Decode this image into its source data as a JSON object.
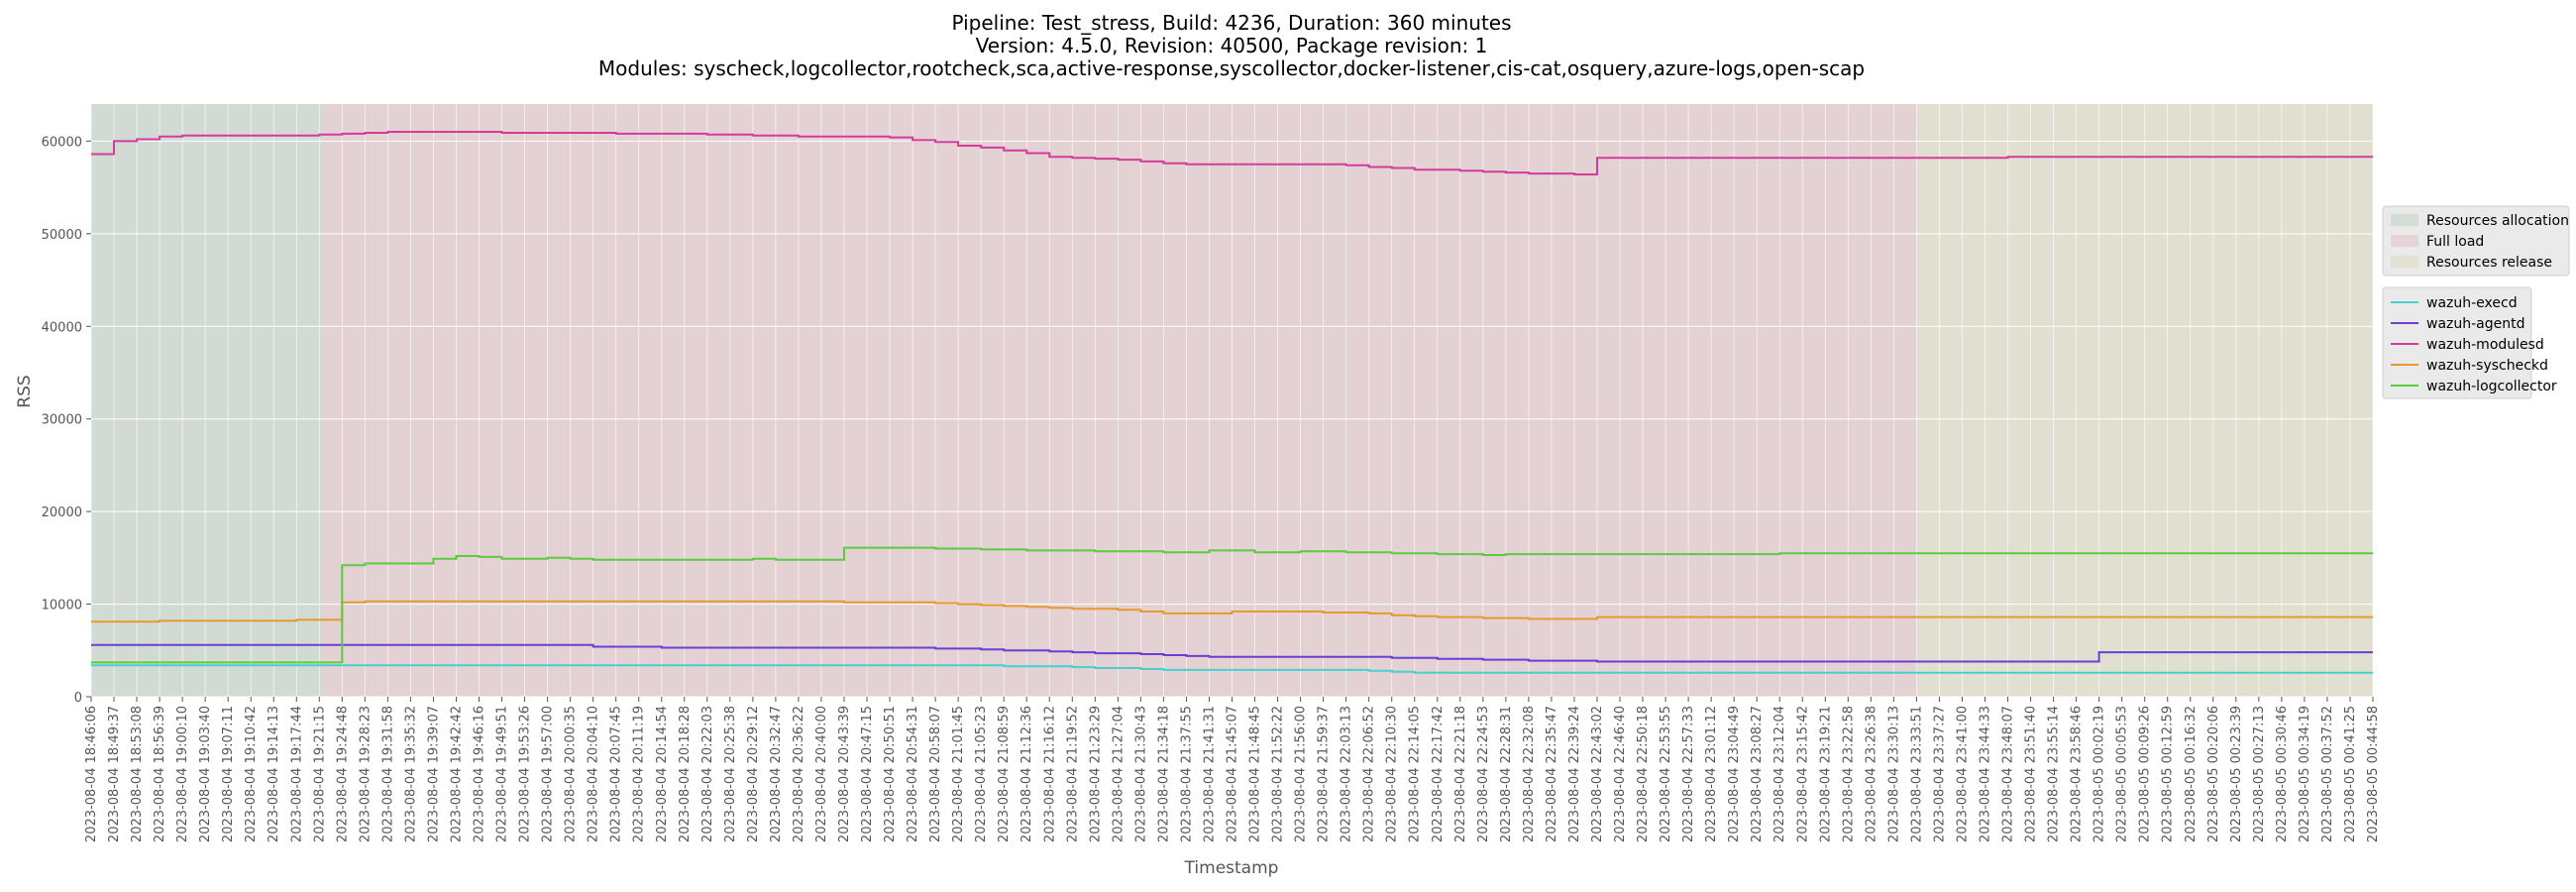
{
  "chart_data": {
    "type": "line",
    "title_lines": [
      "Pipeline: Test_stress, Build: 4236, Duration: 360 minutes",
      "Version: 4.5.0, Revision: 40500, Package revision: 1",
      "Modules: syscheck,logcollector,rootcheck,sca,active-response,syscollector,docker-listener,cis-cat,osquery,azure-logs,open-scap"
    ],
    "xlabel": "Timestamp",
    "ylabel": "RSS",
    "ylim": [
      0,
      64000
    ],
    "yticks": [
      0,
      10000,
      20000,
      30000,
      40000,
      50000,
      60000
    ],
    "grid": true,
    "legend_placement": "right",
    "phases": [
      {
        "name": "Resources allocation",
        "start": 0,
        "end": 40,
        "color": "#b8cfbf"
      },
      {
        "name": "Full load",
        "start": 40,
        "end": 316,
        "color": "#dfb8be"
      },
      {
        "name": "Resources release",
        "start": 316,
        "end": 395,
        "color": "#dcd8b6"
      }
    ],
    "x": [
      "2023-08-04 18:46:06",
      "2023-08-04 18:49:37",
      "2023-08-04 18:53:08",
      "2023-08-04 18:56:39",
      "2023-08-04 19:00:10",
      "2023-08-04 19:03:40",
      "2023-08-04 19:07:11",
      "2023-08-04 19:10:42",
      "2023-08-04 19:14:13",
      "2023-08-04 19:17:44",
      "2023-08-04 19:21:15",
      "2023-08-04 19:24:48",
      "2023-08-04 19:28:23",
      "2023-08-04 19:31:58",
      "2023-08-04 19:35:32",
      "2023-08-04 19:39:07",
      "2023-08-04 19:42:42",
      "2023-08-04 19:46:16",
      "2023-08-04 19:49:51",
      "2023-08-04 19:53:26",
      "2023-08-04 19:57:00",
      "2023-08-04 20:00:35",
      "2023-08-04 20:04:10",
      "2023-08-04 20:07:45",
      "2023-08-04 20:11:19",
      "2023-08-04 20:14:54",
      "2023-08-04 20:18:28",
      "2023-08-04 20:22:03",
      "2023-08-04 20:25:38",
      "2023-08-04 20:29:12",
      "2023-08-04 20:32:47",
      "2023-08-04 20:36:22",
      "2023-08-04 20:40:00",
      "2023-08-04 20:43:39",
      "2023-08-04 20:47:15",
      "2023-08-04 20:50:51",
      "2023-08-04 20:54:31",
      "2023-08-04 20:58:07",
      "2023-08-04 21:01:45",
      "2023-08-04 21:05:23",
      "2023-08-04 21:08:59",
      "2023-08-04 21:12:36",
      "2023-08-04 21:16:12",
      "2023-08-04 21:19:52",
      "2023-08-04 21:23:29",
      "2023-08-04 21:27:04",
      "2023-08-04 21:30:43",
      "2023-08-04 21:34:18",
      "2023-08-04 21:37:55",
      "2023-08-04 21:41:31",
      "2023-08-04 21:45:07",
      "2023-08-04 21:48:45",
      "2023-08-04 21:52:22",
      "2023-08-04 21:56:00",
      "2023-08-04 21:59:37",
      "2023-08-04 22:03:13",
      "2023-08-04 22:06:52",
      "2023-08-04 22:10:30",
      "2023-08-04 22:14:05",
      "2023-08-04 22:17:42",
      "2023-08-04 22:21:18",
      "2023-08-04 22:24:53",
      "2023-08-04 22:28:31",
      "2023-08-04 22:32:08",
      "2023-08-04 22:35:47",
      "2023-08-04 22:39:24",
      "2023-08-04 22:43:02",
      "2023-08-04 22:46:40",
      "2023-08-04 22:50:18",
      "2023-08-04 22:53:55",
      "2023-08-04 22:57:33",
      "2023-08-04 23:01:12",
      "2023-08-04 23:04:49",
      "2023-08-04 23:08:27",
      "2023-08-04 23:12:04",
      "2023-08-04 23:15:42",
      "2023-08-04 23:19:21",
      "2023-08-04 23:22:58",
      "2023-08-04 23:26:38",
      "2023-08-04 23:30:13",
      "2023-08-04 23:33:51",
      "2023-08-04 23:37:27",
      "2023-08-04 23:41:00",
      "2023-08-04 23:44:33",
      "2023-08-04 23:48:07",
      "2023-08-04 23:51:40",
      "2023-08-04 23:55:14",
      "2023-08-04 23:58:46",
      "2023-08-05 00:02:19",
      "2023-08-05 00:05:53",
      "2023-08-05 00:09:26",
      "2023-08-05 00:12:59",
      "2023-08-05 00:16:32",
      "2023-08-05 00:20:06",
      "2023-08-05 00:23:39",
      "2023-08-05 00:27:13",
      "2023-08-05 00:30:46",
      "2023-08-05 00:34:19",
      "2023-08-05 00:37:52",
      "2023-08-05 00:41:25",
      "2023-08-05 00:44:58"
    ],
    "series": [
      {
        "name": "wazuh-execd",
        "color": "#48d1cc",
        "values": [
          3400,
          3400,
          3400,
          3400,
          3400,
          3400,
          3400,
          3400,
          3400,
          3400,
          3400,
          3400,
          3400,
          3400,
          3400,
          3400,
          3400,
          3400,
          3400,
          3400,
          3400,
          3400,
          3400,
          3400,
          3400,
          3400,
          3400,
          3400,
          3400,
          3400,
          3400,
          3400,
          3400,
          3400,
          3400,
          3400,
          3400,
          3400,
          3400,
          3400,
          3300,
          3300,
          3300,
          3200,
          3100,
          3100,
          3000,
          2900,
          2900,
          2900,
          2900,
          2900,
          2900,
          2900,
          2900,
          2900,
          2800,
          2700,
          2600,
          2600,
          2600,
          2600,
          2600,
          2600,
          2600,
          2600,
          2600,
          2600,
          2600,
          2600,
          2600,
          2600,
          2600,
          2600,
          2600,
          2600,
          2600,
          2600,
          2600,
          2600,
          2600,
          2600,
          2600,
          2600,
          2600,
          2600,
          2600,
          2600,
          2600,
          2600,
          2600,
          2600,
          2600,
          2600,
          2600,
          2600,
          2600,
          2600,
          2600,
          2600,
          2600
        ]
      },
      {
        "name": "wazuh-agentd",
        "color": "#6a3fd6",
        "values": [
          5600,
          5600,
          5600,
          5600,
          5600,
          5600,
          5600,
          5600,
          5600,
          5600,
          5600,
          5600,
          5600,
          5600,
          5600,
          5600,
          5600,
          5600,
          5600,
          5600,
          5600,
          5600,
          5400,
          5400,
          5400,
          5300,
          5300,
          5300,
          5300,
          5300,
          5300,
          5300,
          5300,
          5300,
          5300,
          5300,
          5300,
          5200,
          5200,
          5100,
          5000,
          5000,
          4900,
          4800,
          4700,
          4700,
          4600,
          4500,
          4400,
          4300,
          4300,
          4300,
          4300,
          4300,
          4300,
          4300,
          4300,
          4200,
          4200,
          4100,
          4100,
          4000,
          4000,
          3900,
          3900,
          3900,
          3800,
          3800,
          3800,
          3800,
          3800,
          3800,
          3800,
          3800,
          3800,
          3800,
          3800,
          3800,
          3800,
          3800,
          3800,
          3800,
          3800,
          3800,
          3800,
          3800,
          3800,
          3800,
          4800,
          4800,
          4800,
          4800,
          4800,
          4800,
          4800,
          4800,
          4800,
          4800,
          4800,
          4800,
          4800
        ]
      },
      {
        "name": "wazuh-modulesd",
        "color": "#d53c9a",
        "values": [
          58600,
          60000,
          60200,
          60500,
          60600,
          60600,
          60600,
          60600,
          60600,
          60600,
          60700,
          60800,
          60900,
          61000,
          61000,
          61000,
          61000,
          61000,
          60900,
          60900,
          60900,
          60900,
          60900,
          60800,
          60800,
          60800,
          60800,
          60700,
          60700,
          60600,
          60600,
          60500,
          60500,
          60500,
          60500,
          60400,
          60100,
          59900,
          59500,
          59300,
          59000,
          58700,
          58300,
          58200,
          58100,
          58000,
          57800,
          57600,
          57500,
          57500,
          57500,
          57500,
          57500,
          57500,
          57500,
          57400,
          57200,
          57100,
          56900,
          56900,
          56800,
          56700,
          56600,
          56500,
          56500,
          56400,
          58200,
          58200,
          58200,
          58200,
          58200,
          58200,
          58200,
          58200,
          58200,
          58200,
          58200,
          58200,
          58200,
          58200,
          58200,
          58200,
          58200,
          58200,
          58300,
          58300,
          58300,
          58300,
          58300,
          58300,
          58300,
          58300,
          58300,
          58300,
          58300,
          58300,
          58300,
          58300,
          58300,
          58300,
          58300
        ]
      },
      {
        "name": "wazuh-syscheckd",
        "color": "#e69a2e",
        "values": [
          8100,
          8100,
          8100,
          8200,
          8200,
          8200,
          8200,
          8200,
          8200,
          8300,
          8300,
          10200,
          10300,
          10300,
          10300,
          10300,
          10300,
          10300,
          10300,
          10300,
          10300,
          10300,
          10300,
          10300,
          10300,
          10300,
          10300,
          10300,
          10300,
          10300,
          10300,
          10300,
          10300,
          10200,
          10200,
          10200,
          10200,
          10100,
          10000,
          9900,
          9800,
          9700,
          9600,
          9500,
          9500,
          9400,
          9200,
          9000,
          9000,
          9000,
          9200,
          9200,
          9200,
          9200,
          9100,
          9100,
          9000,
          8800,
          8700,
          8600,
          8600,
          8500,
          8500,
          8400,
          8400,
          8400,
          8600,
          8600,
          8600,
          8600,
          8600,
          8600,
          8600,
          8600,
          8600,
          8600,
          8600,
          8600,
          8600,
          8600,
          8600,
          8600,
          8600,
          8600,
          8600,
          8600,
          8600,
          8600,
          8600,
          8600,
          8600,
          8600,
          8600,
          8600,
          8600,
          8600,
          8600,
          8600,
          8600,
          8600,
          8600
        ]
      },
      {
        "name": "wazuh-logcollector",
        "color": "#5ccb3e",
        "values": [
          3700,
          3700,
          3700,
          3700,
          3700,
          3700,
          3700,
          3700,
          3700,
          3700,
          3700,
          14200,
          14400,
          14400,
          14400,
          14900,
          15200,
          15100,
          14900,
          14900,
          15000,
          14900,
          14800,
          14800,
          14800,
          14800,
          14800,
          14800,
          14800,
          14900,
          14800,
          14800,
          14800,
          16100,
          16100,
          16100,
          16100,
          16000,
          16000,
          15900,
          15900,
          15800,
          15800,
          15800,
          15700,
          15700,
          15700,
          15600,
          15600,
          15800,
          15800,
          15600,
          15600,
          15700,
          15700,
          15600,
          15600,
          15500,
          15500,
          15400,
          15400,
          15300,
          15400,
          15400,
          15400,
          15400,
          15400,
          15400,
          15400,
          15400,
          15400,
          15400,
          15400,
          15400,
          15500,
          15500,
          15500,
          15500,
          15500,
          15500,
          15500,
          15500,
          15500,
          15500,
          15500,
          15500,
          15500,
          15500,
          15500,
          15500,
          15500,
          15500,
          15500,
          15500,
          15500,
          15500,
          15500,
          15500,
          15500,
          15500,
          15500
        ]
      }
    ]
  }
}
